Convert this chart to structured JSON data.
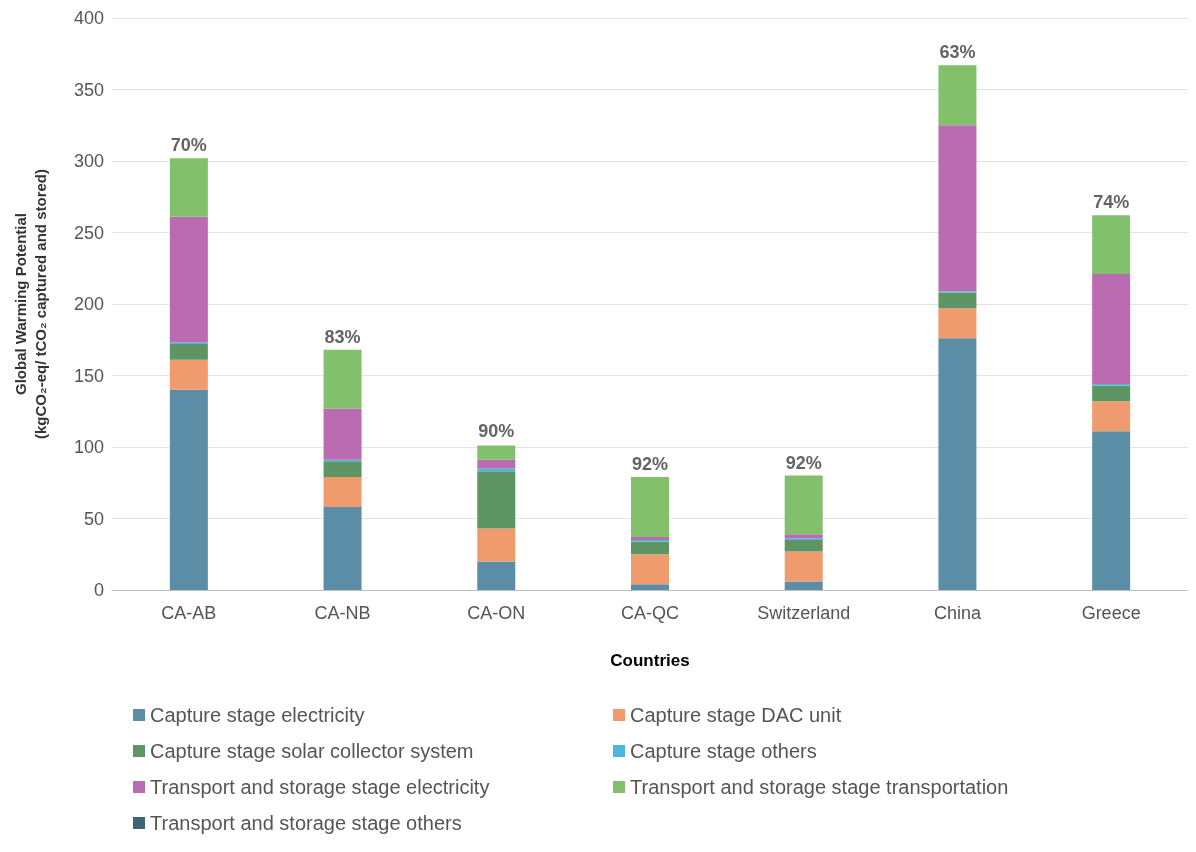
{
  "chart_data": {
    "type": "bar",
    "stacked": true,
    "xlabel": "Countries",
    "ylabel": "Global Warming Potential\n(kgCO₂-eq/ tCO₂ captured and stored)",
    "categories": [
      "CA-AB",
      "CA-NB",
      "CA-ON",
      "CA-QC",
      "Switzerland",
      "China",
      "Greece"
    ],
    "series": [
      {
        "name": "Capture stage electricity",
        "color": "#5b8ea6",
        "values": [
          140,
          58,
          20,
          4,
          6,
          176,
          111
        ]
      },
      {
        "name": "Capture stage DAC unit",
        "color": "#ef9b6e",
        "values": [
          21,
          21,
          23,
          21,
          21,
          21,
          21
        ]
      },
      {
        "name": "Capture stage solar collector system",
        "color": "#5e9564",
        "values": [
          11,
          11,
          40,
          9,
          8,
          11,
          11
        ]
      },
      {
        "name": "Capture stage others",
        "color": "#4ab8de",
        "values": [
          1,
          1,
          2,
          1,
          1,
          1,
          1
        ]
      },
      {
        "name": "Transport and storage stage electricity",
        "color": "#bb6bb1",
        "values": [
          88,
          36,
          6,
          2,
          3,
          116,
          77
        ]
      },
      {
        "name": "Transport and storage stage transportation",
        "color": "#82c06c",
        "values": [
          41,
          41,
          10,
          42,
          41,
          42,
          41
        ]
      },
      {
        "name": "Transport and storage stage others",
        "color": "#3e6576",
        "values": [
          0,
          0,
          0,
          0,
          0,
          0,
          0
        ]
      }
    ],
    "ylim": [
      0,
      400
    ],
    "yticks": [
      0,
      50,
      100,
      150,
      200,
      250,
      300,
      350,
      400
    ],
    "grid": "y",
    "legend": "bottom",
    "annotations": [
      {
        "text": "70%",
        "x": "CA-AB",
        "y": 302
      },
      {
        "text": "83%",
        "x": "CA-NB",
        "y": 168
      },
      {
        "text": "90%",
        "x": "CA-ON",
        "y": 102
      },
      {
        "text": "92%",
        "x": "CA-QC",
        "y": 79
      },
      {
        "text": "92%",
        "x": "Switzerland",
        "y": 80
      },
      {
        "text": "63%",
        "x": "China",
        "y": 367
      },
      {
        "text": "74%",
        "x": "Greece",
        "y": 262
      }
    ]
  }
}
